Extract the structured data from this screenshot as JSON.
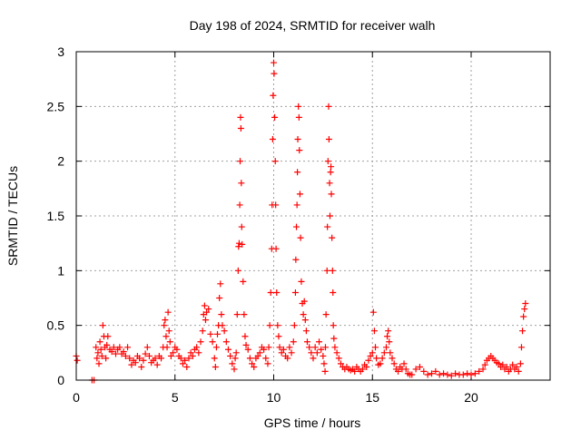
{
  "chart_data": {
    "type": "scatter",
    "title": "Day 198 of 2024, SRMTID for receiver walh",
    "xlabel": "GPS time / hours",
    "ylabel": "SRMTID / TECUs",
    "xlim": [
      0,
      24
    ],
    "ylim": [
      0,
      3
    ],
    "xticks": [
      0,
      5,
      10,
      15,
      20
    ],
    "yticks": [
      0,
      0.5,
      1,
      1.5,
      2,
      2.5,
      3
    ],
    "xtick_labels": [
      "0",
      "5",
      "10",
      "15",
      "20"
    ],
    "ytick_labels": [
      "0",
      "0.5",
      "1",
      "1.5",
      "2",
      "2.5",
      "3"
    ],
    "grid": true,
    "marker": "+",
    "series": [
      {
        "name": "SRMTID",
        "color": "#ff0000",
        "points": [
          [
            0.0,
            0.22
          ],
          [
            0.05,
            0.18
          ],
          [
            0.8,
            0.0
          ],
          [
            0.9,
            0.0
          ],
          [
            1.0,
            0.3
          ],
          [
            1.05,
            0.2
          ],
          [
            1.1,
            0.25
          ],
          [
            1.15,
            0.15
          ],
          [
            1.2,
            0.35
          ],
          [
            1.25,
            0.28
          ],
          [
            1.3,
            0.22
          ],
          [
            1.35,
            0.5
          ],
          [
            1.4,
            0.4
          ],
          [
            1.45,
            0.3
          ],
          [
            1.5,
            0.2
          ],
          [
            1.55,
            0.32
          ],
          [
            1.6,
            0.4
          ],
          [
            1.7,
            0.28
          ],
          [
            1.8,
            0.26
          ],
          [
            1.9,
            0.3
          ],
          [
            2.0,
            0.24
          ],
          [
            2.1,
            0.28
          ],
          [
            2.2,
            0.3
          ],
          [
            2.3,
            0.24
          ],
          [
            2.4,
            0.26
          ],
          [
            2.5,
            0.22
          ],
          [
            2.6,
            0.3
          ],
          [
            2.7,
            0.2
          ],
          [
            2.8,
            0.14
          ],
          [
            2.9,
            0.18
          ],
          [
            3.0,
            0.16
          ],
          [
            3.1,
            0.22
          ],
          [
            3.2,
            0.2
          ],
          [
            3.3,
            0.12
          ],
          [
            3.4,
            0.18
          ],
          [
            3.5,
            0.24
          ],
          [
            3.6,
            0.3
          ],
          [
            3.7,
            0.22
          ],
          [
            3.8,
            0.16
          ],
          [
            3.9,
            0.18
          ],
          [
            4.0,
            0.2
          ],
          [
            4.1,
            0.14
          ],
          [
            4.2,
            0.22
          ],
          [
            4.3,
            0.2
          ],
          [
            4.4,
            0.3
          ],
          [
            4.45,
            0.5
          ],
          [
            4.5,
            0.55
          ],
          [
            4.55,
            0.4
          ],
          [
            4.6,
            0.3
          ],
          [
            4.65,
            0.62
          ],
          [
            4.7,
            0.45
          ],
          [
            4.75,
            0.35
          ],
          [
            4.8,
            0.22
          ],
          [
            4.9,
            0.25
          ],
          [
            5.0,
            0.3
          ],
          [
            5.1,
            0.28
          ],
          [
            5.2,
            0.22
          ],
          [
            5.3,
            0.2
          ],
          [
            5.4,
            0.15
          ],
          [
            5.5,
            0.18
          ],
          [
            5.6,
            0.12
          ],
          [
            5.7,
            0.2
          ],
          [
            5.8,
            0.25
          ],
          [
            5.9,
            0.22
          ],
          [
            6.0,
            0.28
          ],
          [
            6.1,
            0.3
          ],
          [
            6.2,
            0.25
          ],
          [
            6.3,
            0.35
          ],
          [
            6.4,
            0.45
          ],
          [
            6.45,
            0.6
          ],
          [
            6.5,
            0.68
          ],
          [
            6.55,
            0.55
          ],
          [
            6.6,
            0.62
          ],
          [
            6.7,
            0.65
          ],
          [
            6.8,
            0.42
          ],
          [
            6.9,
            0.35
          ],
          [
            7.0,
            0.2
          ],
          [
            7.05,
            0.12
          ],
          [
            7.1,
            0.3
          ],
          [
            7.15,
            0.42
          ],
          [
            7.2,
            0.5
          ],
          [
            7.25,
            0.75
          ],
          [
            7.3,
            0.88
          ],
          [
            7.35,
            0.6
          ],
          [
            7.4,
            0.5
          ],
          [
            7.5,
            0.45
          ],
          [
            7.6,
            0.35
          ],
          [
            7.7,
            0.28
          ],
          [
            7.8,
            0.22
          ],
          [
            7.9,
            0.15
          ],
          [
            8.0,
            0.1
          ],
          [
            8.05,
            0.2
          ],
          [
            8.1,
            0.25
          ],
          [
            8.15,
            0.6
          ],
          [
            8.2,
            1.0
          ],
          [
            8.22,
            1.22
          ],
          [
            8.25,
            1.25
          ],
          [
            8.28,
            1.6
          ],
          [
            8.3,
            2.0
          ],
          [
            8.32,
            2.4
          ],
          [
            8.34,
            2.3
          ],
          [
            8.36,
            1.8
          ],
          [
            8.38,
            1.4
          ],
          [
            8.4,
            1.24
          ],
          [
            8.45,
            0.9
          ],
          [
            8.5,
            0.6
          ],
          [
            8.55,
            0.4
          ],
          [
            8.6,
            0.32
          ],
          [
            8.7,
            0.28
          ],
          [
            8.8,
            0.2
          ],
          [
            8.9,
            0.15
          ],
          [
            9.0,
            0.12
          ],
          [
            9.1,
            0.2
          ],
          [
            9.2,
            0.22
          ],
          [
            9.3,
            0.25
          ],
          [
            9.4,
            0.3
          ],
          [
            9.5,
            0.28
          ],
          [
            9.6,
            0.2
          ],
          [
            9.7,
            0.15
          ],
          [
            9.75,
            0.3
          ],
          [
            9.8,
            0.5
          ],
          [
            9.85,
            0.8
          ],
          [
            9.9,
            1.2
          ],
          [
            9.92,
            1.6
          ],
          [
            9.95,
            2.2
          ],
          [
            9.97,
            2.6
          ],
          [
            10.0,
            2.9
          ],
          [
            10.02,
            2.8
          ],
          [
            10.05,
            2.4
          ],
          [
            10.08,
            2.0
          ],
          [
            10.1,
            1.6
          ],
          [
            10.12,
            1.2
          ],
          [
            10.15,
            0.8
          ],
          [
            10.2,
            0.5
          ],
          [
            10.25,
            0.4
          ],
          [
            10.3,
            0.3
          ],
          [
            10.4,
            0.25
          ],
          [
            10.5,
            0.28
          ],
          [
            10.6,
            0.22
          ],
          [
            10.7,
            0.2
          ],
          [
            10.8,
            0.3
          ],
          [
            10.9,
            0.25
          ],
          [
            11.0,
            0.35
          ],
          [
            11.05,
            0.5
          ],
          [
            11.1,
            0.8
          ],
          [
            11.12,
            1.1
          ],
          [
            11.15,
            1.4
          ],
          [
            11.18,
            1.6
          ],
          [
            11.2,
            1.9
          ],
          [
            11.22,
            2.2
          ],
          [
            11.25,
            2.5
          ],
          [
            11.28,
            2.4
          ],
          [
            11.3,
            2.1
          ],
          [
            11.33,
            1.7
          ],
          [
            11.36,
            1.3
          ],
          [
            11.4,
            0.9
          ],
          [
            11.45,
            0.7
          ],
          [
            11.5,
            0.6
          ],
          [
            11.55,
            0.72
          ],
          [
            11.6,
            0.55
          ],
          [
            11.65,
            0.45
          ],
          [
            11.7,
            0.35
          ],
          [
            11.8,
            0.3
          ],
          [
            11.9,
            0.25
          ],
          [
            12.0,
            0.2
          ],
          [
            12.1,
            0.3
          ],
          [
            12.2,
            0.25
          ],
          [
            12.3,
            0.35
          ],
          [
            12.4,
            0.28
          ],
          [
            12.5,
            0.22
          ],
          [
            12.55,
            0.15
          ],
          [
            12.6,
            0.08
          ],
          [
            12.62,
            0.3
          ],
          [
            12.65,
            0.6
          ],
          [
            12.7,
            1.0
          ],
          [
            12.72,
            1.4
          ],
          [
            12.75,
            2.0
          ],
          [
            12.78,
            2.5
          ],
          [
            12.8,
            2.2
          ],
          [
            12.83,
            1.8
          ],
          [
            12.85,
            1.5
          ],
          [
            12.88,
            1.9
          ],
          [
            12.9,
            1.95
          ],
          [
            12.92,
            1.7
          ],
          [
            12.95,
            1.3
          ],
          [
            12.98,
            1.0
          ],
          [
            13.0,
            0.8
          ],
          [
            13.02,
            0.5
          ],
          [
            13.05,
            0.38
          ],
          [
            13.1,
            0.3
          ],
          [
            13.2,
            0.25
          ],
          [
            13.3,
            0.2
          ],
          [
            13.4,
            0.15
          ],
          [
            13.5,
            0.12
          ],
          [
            13.6,
            0.1
          ],
          [
            13.7,
            0.12
          ],
          [
            13.8,
            0.1
          ],
          [
            13.9,
            0.09
          ],
          [
            14.0,
            0.1
          ],
          [
            14.1,
            0.08
          ],
          [
            14.2,
            0.12
          ],
          [
            14.3,
            0.1
          ],
          [
            14.4,
            0.08
          ],
          [
            14.5,
            0.1
          ],
          [
            14.6,
            0.14
          ],
          [
            14.7,
            0.12
          ],
          [
            14.8,
            0.18
          ],
          [
            14.9,
            0.22
          ],
          [
            15.0,
            0.25
          ],
          [
            15.05,
            0.62
          ],
          [
            15.1,
            0.45
          ],
          [
            15.15,
            0.3
          ],
          [
            15.2,
            0.2
          ],
          [
            15.3,
            0.14
          ],
          [
            15.4,
            0.15
          ],
          [
            15.5,
            0.2
          ],
          [
            15.6,
            0.25
          ],
          [
            15.7,
            0.3
          ],
          [
            15.75,
            0.4
          ],
          [
            15.8,
            0.45
          ],
          [
            15.85,
            0.35
          ],
          [
            15.9,
            0.25
          ],
          [
            16.0,
            0.2
          ],
          [
            16.1,
            0.15
          ],
          [
            16.2,
            0.1
          ],
          [
            16.3,
            0.08
          ],
          [
            16.4,
            0.12
          ],
          [
            16.5,
            0.1
          ],
          [
            16.6,
            0.15
          ],
          [
            16.7,
            0.1
          ],
          [
            16.8,
            0.06
          ],
          [
            16.9,
            0.05
          ],
          [
            17.0,
            0.05
          ],
          [
            17.2,
            0.1
          ],
          [
            17.4,
            0.12
          ],
          [
            17.6,
            0.08
          ],
          [
            17.8,
            0.05
          ],
          [
            18.0,
            0.06
          ],
          [
            18.2,
            0.08
          ],
          [
            18.4,
            0.05
          ],
          [
            18.6,
            0.06
          ],
          [
            18.8,
            0.05
          ],
          [
            19.0,
            0.04
          ],
          [
            19.2,
            0.06
          ],
          [
            19.4,
            0.05
          ],
          [
            19.6,
            0.05
          ],
          [
            19.8,
            0.06
          ],
          [
            20.0,
            0.05
          ],
          [
            20.2,
            0.06
          ],
          [
            20.4,
            0.08
          ],
          [
            20.6,
            0.1
          ],
          [
            20.7,
            0.14
          ],
          [
            20.8,
            0.18
          ],
          [
            20.9,
            0.2
          ],
          [
            21.0,
            0.22
          ],
          [
            21.1,
            0.2
          ],
          [
            21.2,
            0.18
          ],
          [
            21.3,
            0.16
          ],
          [
            21.4,
            0.15
          ],
          [
            21.5,
            0.12
          ],
          [
            21.6,
            0.14
          ],
          [
            21.7,
            0.1
          ],
          [
            21.8,
            0.12
          ],
          [
            21.9,
            0.08
          ],
          [
            22.0,
            0.1
          ],
          [
            22.1,
            0.14
          ],
          [
            22.2,
            0.1
          ],
          [
            22.3,
            0.12
          ],
          [
            22.4,
            0.08
          ],
          [
            22.5,
            0.15
          ],
          [
            22.55,
            0.3
          ],
          [
            22.6,
            0.45
          ],
          [
            22.65,
            0.58
          ],
          [
            22.7,
            0.65
          ],
          [
            22.75,
            0.7
          ]
        ]
      }
    ]
  }
}
